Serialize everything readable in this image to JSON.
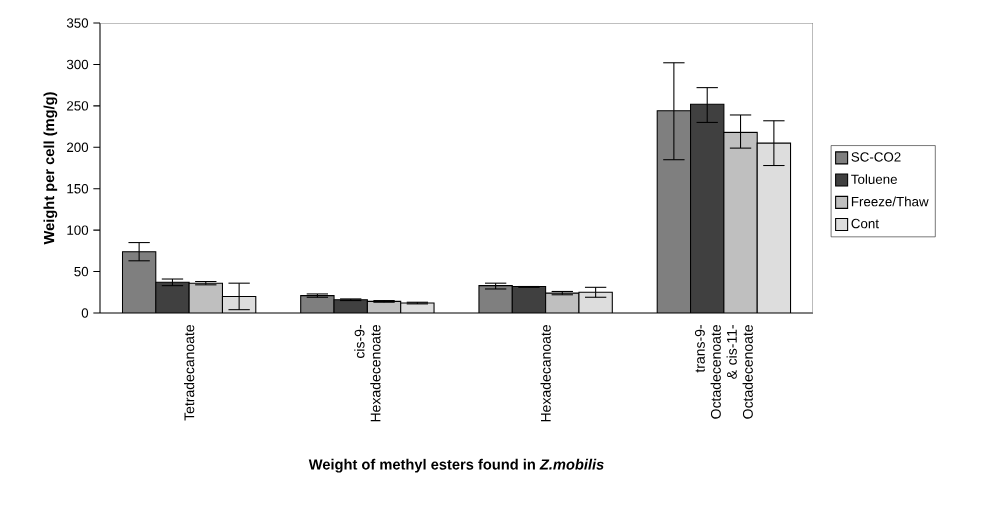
{
  "chart_data": {
    "type": "bar",
    "xlabel": "Weight of methyl esters found in *Z.mobilis*",
    "ylabel": "Weight per cell (mg/g)",
    "categories": [
      "Tetradecanoate",
      "cis-9- Hexadecenoate",
      "Hexadecanoate",
      "trans-9- Octadecenoate & cis-11- Octadecenoate"
    ],
    "series": [
      {
        "name": "SC-CO2",
        "color": "#7f7f7f",
        "values": [
          74,
          21,
          33,
          244
        ],
        "errors": [
          [
            63,
            85
          ],
          [
            19,
            23
          ],
          [
            29,
            36
          ],
          [
            185,
            302
          ]
        ]
      },
      {
        "name": "Toluene",
        "color": "#404040",
        "values": [
          37,
          16,
          32,
          252
        ],
        "errors": [
          [
            33,
            41
          ],
          [
            15,
            17
          ],
          [
            31,
            32
          ],
          [
            230,
            272
          ]
        ]
      },
      {
        "name": "Freeze/Thaw",
        "color": "#bfbfbf",
        "values": [
          36,
          14,
          24,
          218
        ],
        "errors": [
          [
            34,
            38
          ],
          [
            13,
            15
          ],
          [
            22,
            26
          ],
          [
            199,
            239
          ]
        ]
      },
      {
        "name": "Cont",
        "color": "#dddddd",
        "values": [
          20,
          12,
          25,
          205
        ],
        "errors": [
          [
            4,
            36
          ],
          [
            11,
            13
          ],
          [
            19,
            31
          ],
          [
            178,
            232
          ]
        ]
      }
    ],
    "ylim": [
      0,
      350
    ],
    "yticks": [
      0,
      50,
      100,
      150,
      200,
      250,
      300,
      350
    ],
    "legend": "right"
  }
}
